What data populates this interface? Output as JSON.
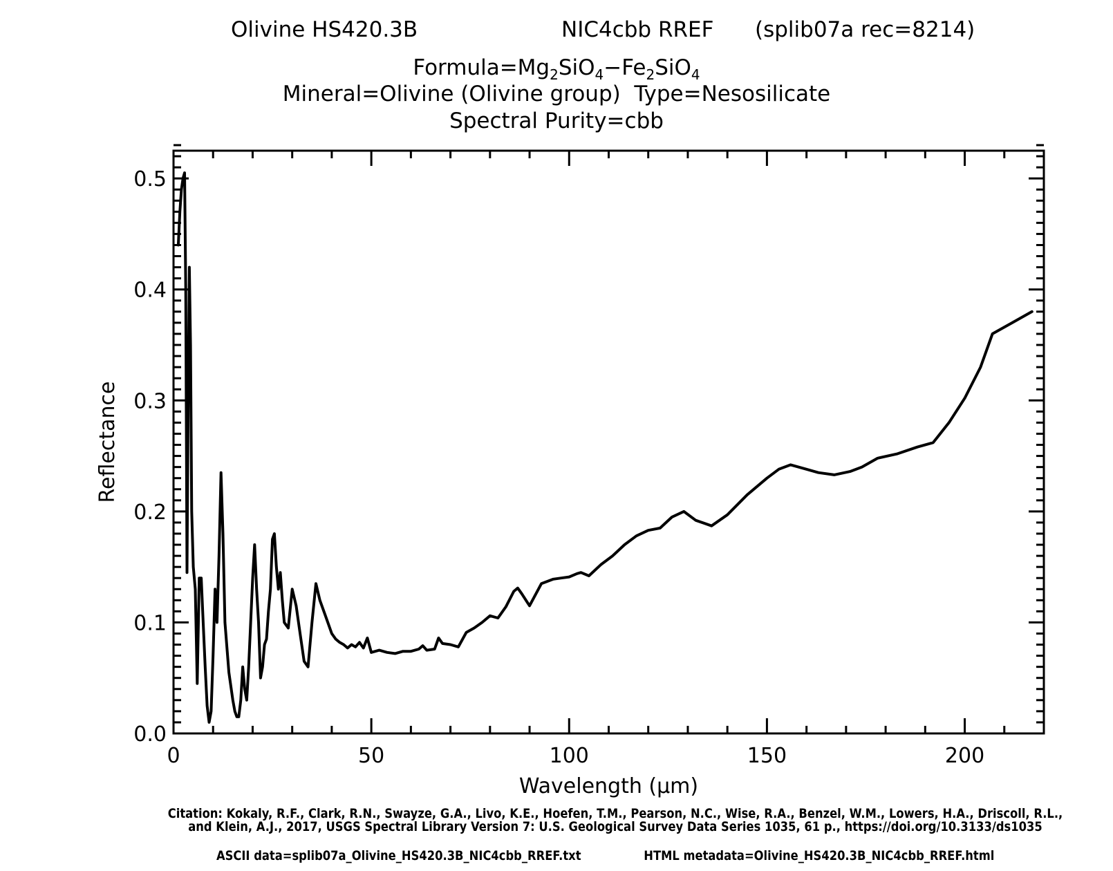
{
  "header": {
    "sample": "Olivine HS420.3B",
    "spectrometer": "NIC4cbb RREF",
    "record": "(splib07a rec=8214)",
    "formula_prefix": "Formula=Mg",
    "formula_sub1": "2",
    "formula_mid1": "SiO",
    "formula_sub2": "4",
    "formula_mid2": "−Fe",
    "formula_sub3": "2",
    "formula_mid3": "SiO",
    "formula_sub4": "4",
    "mineral_line": "Mineral=Olivine (Olivine group)  Type=Nesosilicate",
    "purity_line": "Spectral Purity=cbb"
  },
  "footer": {
    "citation_line1": "Citation: Kokaly, R.F., Clark, R.N., Swayze, G.A., Livo, K.E., Hoefen, T.M., Pearson, N.C., Wise, R.A., Benzel, W.M., Lowers, H.A., Driscoll, R.L.,",
    "citation_line2": "and Klein, A.J., 2017, USGS Spectral Library Version 7: U.S. Geological Survey Data Series 1035, 61 p., https://doi.org/10.3133/ds1035",
    "ascii_data": "ASCII data=splib07a_Olivine_HS420.3B_NIC4cbb_RREF.txt",
    "html_metadata": "HTML metadata=Olivine_HS420.3B_NIC4cbb_RREF.html"
  },
  "chart_data": {
    "type": "line",
    "xlabel": "Wavelength (μm)",
    "ylabel": "Reflectance",
    "xlim": [
      0,
      220
    ],
    "ylim": [
      0,
      0.525
    ],
    "x_ticks": [
      0,
      50,
      100,
      150,
      200
    ],
    "x_tick_labels": [
      "0",
      "50",
      "100",
      "150",
      "200"
    ],
    "y_ticks": [
      0.0,
      0.1,
      0.2,
      0.3,
      0.4,
      0.5
    ],
    "y_tick_labels": [
      "0.0",
      "0.1",
      "0.2",
      "0.3",
      "0.4",
      "0.5"
    ],
    "line_color": "#000000",
    "series": [
      {
        "x": [
          1.2,
          1.6,
          2.0,
          2.4,
          2.8,
          3.1,
          3.4,
          3.7,
          4.0,
          4.3,
          4.6,
          5.0,
          5.5,
          6.0,
          6.5,
          7.0,
          7.5,
          8.0,
          8.5,
          9.0,
          9.5,
          10.0,
          10.5,
          11.0,
          11.5,
          12.0,
          12.5,
          13.0,
          14.0,
          15.0,
          15.5,
          16.0,
          16.5,
          17.0,
          17.5,
          18.0,
          18.5,
          19.0,
          19.5,
          20.0,
          20.5,
          21.0,
          21.5,
          22.0,
          22.5,
          23.0,
          23.5,
          24.0,
          24.5,
          25.0,
          25.5,
          26.0,
          26.5,
          27.0,
          27.5,
          28.0,
          29.0,
          30.0,
          31.0,
          32.0,
          33.0,
          34.0,
          35.0,
          36.0,
          37.0,
          38.0,
          39.0,
          40.0,
          41.0,
          42.0,
          43.0,
          44.0,
          45.0,
          46.0,
          47.0,
          48.0,
          49.0,
          50.0,
          52.0,
          54.0,
          56.0,
          58.0,
          60.0,
          62.0,
          63.0,
          64.0,
          66.0,
          67.0,
          68.0,
          70.0,
          72.0,
          74.0,
          76.0,
          78.0,
          80.0,
          82.0,
          84.0,
          86.0,
          87.0,
          88.0,
          90.0,
          93.0,
          96.0,
          98.0,
          100.0,
          102.0,
          103.0,
          105.0,
          108.0,
          111.0,
          114.0,
          117.0,
          120.0,
          123.0,
          126.0,
          129.0,
          132.0,
          136.0,
          140.0,
          145.0,
          150.0,
          153.0,
          156.0,
          160.0,
          163.0,
          167.0,
          171.0,
          174.0,
          178.0,
          183.0,
          188.0,
          192.0,
          196.0,
          200.0,
          204.0,
          207.0,
          212.0,
          217.0
        ],
        "y": [
          0.44,
          0.47,
          0.49,
          0.5,
          0.505,
          0.4,
          0.145,
          0.3,
          0.42,
          0.35,
          0.2,
          0.15,
          0.13,
          0.045,
          0.14,
          0.14,
          0.1,
          0.06,
          0.025,
          0.01,
          0.02,
          0.07,
          0.13,
          0.1,
          0.16,
          0.235,
          0.18,
          0.1,
          0.055,
          0.03,
          0.02,
          0.015,
          0.015,
          0.03,
          0.06,
          0.04,
          0.03,
          0.06,
          0.1,
          0.14,
          0.17,
          0.13,
          0.1,
          0.05,
          0.06,
          0.08,
          0.085,
          0.11,
          0.13,
          0.175,
          0.18,
          0.15,
          0.13,
          0.145,
          0.12,
          0.1,
          0.095,
          0.13,
          0.115,
          0.09,
          0.065,
          0.06,
          0.1,
          0.135,
          0.12,
          0.11,
          0.1,
          0.09,
          0.085,
          0.082,
          0.08,
          0.077,
          0.08,
          0.078,
          0.082,
          0.077,
          0.086,
          0.073,
          0.075,
          0.073,
          0.072,
          0.074,
          0.074,
          0.076,
          0.079,
          0.075,
          0.076,
          0.086,
          0.081,
          0.08,
          0.078,
          0.091,
          0.095,
          0.1,
          0.106,
          0.104,
          0.114,
          0.128,
          0.131,
          0.126,
          0.115,
          0.135,
          0.139,
          0.14,
          0.141,
          0.144,
          0.145,
          0.142,
          0.152,
          0.16,
          0.17,
          0.178,
          0.183,
          0.185,
          0.195,
          0.2,
          0.192,
          0.187,
          0.197,
          0.215,
          0.23,
          0.238,
          0.242,
          0.238,
          0.235,
          0.233,
          0.236,
          0.24,
          0.248,
          0.252,
          0.258,
          0.262,
          0.28,
          0.302,
          0.33,
          0.36,
          0.37,
          0.38
        ]
      }
    ]
  }
}
